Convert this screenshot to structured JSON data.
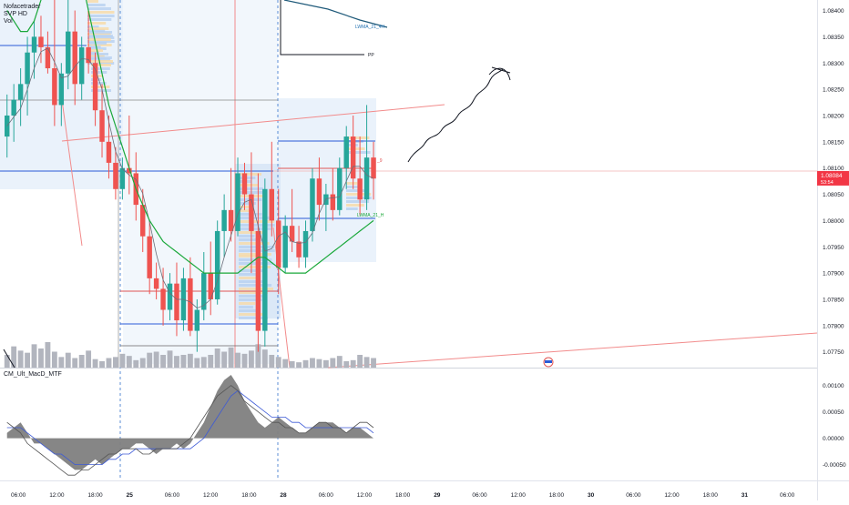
{
  "legend": {
    "author": "Nofacetrader",
    "indicator": "SVP HD",
    "volume": "Vol"
  },
  "indicator_panel": {
    "title": "CM_Ult_MacD_MTF"
  },
  "price_box": {
    "price": "1.08084",
    "countdown": "53:54"
  },
  "line_labels": {
    "lwma_top": "LWMA_21_4H",
    "pp": "PP",
    "lwma_bottom": "LWMA_21_H",
    "r9": "_9"
  },
  "colors": {
    "up": "#26a69a",
    "down": "#ef5350",
    "lwma": "#1aa83a",
    "vol": "#b2b5be",
    "trend": "#f28b8b",
    "blue_line": "#2a5bd7",
    "macd_area": "#808080",
    "price_box": "#f23645"
  },
  "chart_data": [
    {
      "type": "line",
      "title": "",
      "price_axis_ticks": [
        "1.08400",
        "1.08350",
        "1.08300",
        "1.08250",
        "1.08200",
        "1.08150",
        "1.08100",
        "1.08050",
        "1.08000",
        "1.07950",
        "1.07900",
        "1.07850",
        "1.07800",
        "1.07750"
      ],
      "time_axis_ticks": [
        "06:00",
        "12:00",
        "18:00",
        "25",
        "06:00",
        "12:00",
        "18:00",
        "28",
        "06:00",
        "12:00",
        "18:00",
        "29",
        "06:00",
        "12:00",
        "18:00",
        "30",
        "06:00",
        "12:00",
        "18:00",
        "31",
        "06:00"
      ],
      "ylim": [
        1.0772,
        1.0842
      ],
      "candles": [
        {
          "o": 1.0816,
          "h": 1.0824,
          "l": 1.0812,
          "c": 1.082
        },
        {
          "o": 1.082,
          "h": 1.0826,
          "l": 1.0815,
          "c": 1.0823
        },
        {
          "o": 1.0823,
          "h": 1.0829,
          "l": 1.0818,
          "c": 1.0826
        },
        {
          "o": 1.0826,
          "h": 1.0835,
          "l": 1.082,
          "c": 1.0832
        },
        {
          "o": 1.0832,
          "h": 1.0838,
          "l": 1.0827,
          "c": 1.0835
        },
        {
          "o": 1.0835,
          "h": 1.0839,
          "l": 1.083,
          "c": 1.0833
        },
        {
          "o": 1.0833,
          "h": 1.0836,
          "l": 1.0828,
          "c": 1.0829
        },
        {
          "o": 1.0829,
          "h": 1.0842,
          "l": 1.0818,
          "c": 1.0822
        },
        {
          "o": 1.0822,
          "h": 1.083,
          "l": 1.0818,
          "c": 1.0828
        },
        {
          "o": 1.0828,
          "h": 1.0842,
          "l": 1.0825,
          "c": 1.0836
        },
        {
          "o": 1.0836,
          "h": 1.084,
          "l": 1.0822,
          "c": 1.0826
        },
        {
          "o": 1.0826,
          "h": 1.0835,
          "l": 1.0823,
          "c": 1.0833
        },
        {
          "o": 1.0833,
          "h": 1.084,
          "l": 1.0828,
          "c": 1.083
        },
        {
          "o": 1.083,
          "h": 1.0832,
          "l": 1.0818,
          "c": 1.0821
        },
        {
          "o": 1.0821,
          "h": 1.0826,
          "l": 1.0812,
          "c": 1.0815
        },
        {
          "o": 1.0815,
          "h": 1.082,
          "l": 1.0808,
          "c": 1.0811
        },
        {
          "o": 1.0811,
          "h": 1.0814,
          "l": 1.0804,
          "c": 1.0806
        },
        {
          "o": 1.0806,
          "h": 1.0812,
          "l": 1.0804,
          "c": 1.081
        },
        {
          "o": 1.081,
          "h": 1.082,
          "l": 1.0805,
          "c": 1.0809
        },
        {
          "o": 1.0809,
          "h": 1.0813,
          "l": 1.08,
          "c": 1.0803
        },
        {
          "o": 1.0803,
          "h": 1.0806,
          "l": 1.0794,
          "c": 1.0797
        },
        {
          "o": 1.0797,
          "h": 1.08,
          "l": 1.0786,
          "c": 1.0789
        },
        {
          "o": 1.0789,
          "h": 1.0792,
          "l": 1.0785,
          "c": 1.0787
        },
        {
          "o": 1.0787,
          "h": 1.0791,
          "l": 1.078,
          "c": 1.0783
        },
        {
          "o": 1.0783,
          "h": 1.079,
          "l": 1.0781,
          "c": 1.0788
        },
        {
          "o": 1.0788,
          "h": 1.0792,
          "l": 1.0778,
          "c": 1.0781
        },
        {
          "o": 1.0781,
          "h": 1.0791,
          "l": 1.0779,
          "c": 1.0789
        },
        {
          "o": 1.0789,
          "h": 1.0793,
          "l": 1.0778,
          "c": 1.0779
        },
        {
          "o": 1.0779,
          "h": 1.0785,
          "l": 1.0775,
          "c": 1.0783
        },
        {
          "o": 1.0783,
          "h": 1.0794,
          "l": 1.0781,
          "c": 1.079
        },
        {
          "o": 1.079,
          "h": 1.0796,
          "l": 1.0782,
          "c": 1.0785
        },
        {
          "o": 1.0785,
          "h": 1.08,
          "l": 1.0784,
          "c": 1.0798
        },
        {
          "o": 1.0798,
          "h": 1.0805,
          "l": 1.0793,
          "c": 1.0802
        },
        {
          "o": 1.0802,
          "h": 1.081,
          "l": 1.0796,
          "c": 1.0798
        },
        {
          "o": 1.0798,
          "h": 1.0812,
          "l": 1.0797,
          "c": 1.0809
        },
        {
          "o": 1.0809,
          "h": 1.0811,
          "l": 1.0802,
          "c": 1.0805
        },
        {
          "o": 1.0805,
          "h": 1.0813,
          "l": 1.079,
          "c": 1.0798
        },
        {
          "o": 1.0798,
          "h": 1.0809,
          "l": 1.0775,
          "c": 1.0779
        },
        {
          "o": 1.0779,
          "h": 1.0808,
          "l": 1.0776,
          "c": 1.0806
        },
        {
          "o": 1.0806,
          "h": 1.0815,
          "l": 1.0797,
          "c": 1.08
        },
        {
          "o": 1.08,
          "h": 1.0806,
          "l": 1.0786,
          "c": 1.0791
        },
        {
          "o": 1.0791,
          "h": 1.0801,
          "l": 1.079,
          "c": 1.0799
        },
        {
          "o": 1.0799,
          "h": 1.0806,
          "l": 1.0794,
          "c": 1.0796
        },
        {
          "o": 1.0796,
          "h": 1.0799,
          "l": 1.0791,
          "c": 1.0793
        },
        {
          "o": 1.0793,
          "h": 1.08,
          "l": 1.0791,
          "c": 1.0798
        },
        {
          "o": 1.0798,
          "h": 1.081,
          "l": 1.0796,
          "c": 1.0808
        },
        {
          "o": 1.0808,
          "h": 1.0812,
          "l": 1.08,
          "c": 1.0803
        },
        {
          "o": 1.0803,
          "h": 1.0807,
          "l": 1.0798,
          "c": 1.0805
        },
        {
          "o": 1.0805,
          "h": 1.081,
          "l": 1.08,
          "c": 1.0802
        },
        {
          "o": 1.0802,
          "h": 1.0812,
          "l": 1.0801,
          "c": 1.081
        },
        {
          "o": 1.081,
          "h": 1.0818,
          "l": 1.0806,
          "c": 1.0816
        },
        {
          "o": 1.0816,
          "h": 1.082,
          "l": 1.0806,
          "c": 1.0808
        },
        {
          "o": 1.0808,
          "h": 1.0816,
          "l": 1.0801,
          "c": 1.0804
        },
        {
          "o": 1.0804,
          "h": 1.0822,
          "l": 1.0802,
          "c": 1.0812
        },
        {
          "o": 1.0812,
          "h": 1.0815,
          "l": 1.0804,
          "c": 1.0808
        }
      ],
      "volume": [
        1.2,
        2.0,
        1.6,
        1.4,
        2.2,
        1.8,
        2.4,
        1.5,
        1.0,
        1.4,
        0.9,
        1.2,
        1.6,
        0.8,
        0.6,
        0.9,
        1.0,
        1.3,
        1.1,
        0.7,
        0.9,
        1.4,
        1.5,
        1.2,
        1.6,
        1.1,
        1.2,
        1.3,
        0.9,
        1.0,
        1.2,
        1.8,
        1.5,
        1.9,
        1.4,
        1.3,
        1.6,
        2.2,
        1.7,
        1.2,
        1.0,
        0.8,
        0.6,
        0.5,
        0.7,
        0.9,
        0.8,
        0.7,
        0.9,
        1.1,
        0.6,
        0.7,
        1.2,
        1.0,
        0.9
      ],
      "lwma_h": [
        1.084,
        1.0838,
        1.0836,
        1.0836,
        1.0838,
        1.0842,
        1.0846,
        1.085,
        1.0852,
        1.0852,
        1.085,
        1.0846,
        1.084,
        1.0834,
        1.0828,
        1.0822,
        1.0818,
        1.0814,
        1.081,
        1.0806,
        1.0803,
        1.08,
        1.0798,
        1.0796,
        1.0795,
        1.0794,
        1.0793,
        1.0792,
        1.0791,
        1.079,
        1.079,
        1.079,
        1.079,
        1.079,
        1.079,
        1.0791,
        1.0792,
        1.0793,
        1.0793,
        1.0792,
        1.0791,
        1.079,
        1.079,
        1.079,
        1.079,
        1.0791,
        1.0792,
        1.0793,
        1.0794,
        1.0795,
        1.0796,
        1.0797,
        1.0798,
        1.0799,
        1.08
      ],
      "macd": {
        "yticks": [
          "0.00100",
          "0.00050",
          "0.00000",
          "-0.00050"
        ],
        "ylim": [
          -0.0008,
          0.0012
        ],
        "hist": [
          0.0001,
          0.0002,
          0.0003,
          0.0001,
          -0.0001,
          -0.0001,
          -0.0002,
          -0.0003,
          -0.0004,
          -0.0005,
          -0.0006,
          -0.0006,
          -0.0005,
          -0.0004,
          -0.0005,
          -0.0004,
          -0.0003,
          -0.0002,
          -0.0002,
          -0.0001,
          -0.0001,
          -0.0002,
          -0.0003,
          -0.0002,
          -0.0002,
          -0.0001,
          -0.0002,
          -0.0001,
          0.0001,
          0.0003,
          0.0006,
          0.0009,
          0.0011,
          0.0012,
          0.001,
          0.0007,
          0.0005,
          0.0003,
          0.0002,
          0.0003,
          0.0004,
          0.0003,
          0.0002,
          0.0001,
          0.0001,
          0.0002,
          0.0003,
          0.0003,
          0.0003,
          0.0002,
          0.0001,
          0.0002,
          0.0002,
          0.0001,
          0.0
        ],
        "signal": [
          0.0002,
          0.0002,
          0.0002,
          0.0001,
          0.0,
          -0.0001,
          -0.0002,
          -0.0003,
          -0.0003,
          -0.0004,
          -0.0005,
          -0.0005,
          -0.0005,
          -0.0005,
          -0.0005,
          -0.0004,
          -0.0004,
          -0.0003,
          -0.0003,
          -0.0002,
          -0.0002,
          -0.0002,
          -0.0002,
          -0.0002,
          -0.0002,
          -0.0002,
          -0.0002,
          -0.0002,
          -0.0001,
          0.0,
          0.0002,
          0.0004,
          0.0006,
          0.0008,
          0.0009,
          0.0008,
          0.0007,
          0.0006,
          0.0005,
          0.0004,
          0.0004,
          0.0004,
          0.0003,
          0.0003,
          0.0002,
          0.0002,
          0.0002,
          0.0002,
          0.0002,
          0.0002,
          0.0002,
          0.0002,
          0.0002,
          0.0002,
          0.0001
        ],
        "macd_line": [
          0.0003,
          0.0002,
          0.0001,
          -0.0001,
          -0.0002,
          -0.0003,
          -0.0004,
          -0.0005,
          -0.0006,
          -0.0007,
          -0.0007,
          -0.0006,
          -0.0006,
          -0.0005,
          -0.0004,
          -0.0003,
          -0.0003,
          -0.0002,
          -0.0002,
          -0.0002,
          -0.0003,
          -0.0003,
          -0.0002,
          -0.0002,
          -0.0002,
          -0.0002,
          -0.0001,
          0.0,
          0.0002,
          0.0004,
          0.0006,
          0.0008,
          0.0009,
          0.001,
          0.0009,
          0.0007,
          0.0006,
          0.0005,
          0.0004,
          0.0003,
          0.0003,
          0.0002,
          0.0002,
          0.0001,
          0.0001,
          0.0002,
          0.0003,
          0.0003,
          0.0002,
          0.0002,
          0.0001,
          0.0002,
          0.0003,
          0.0003,
          0.0002
        ]
      }
    }
  ]
}
